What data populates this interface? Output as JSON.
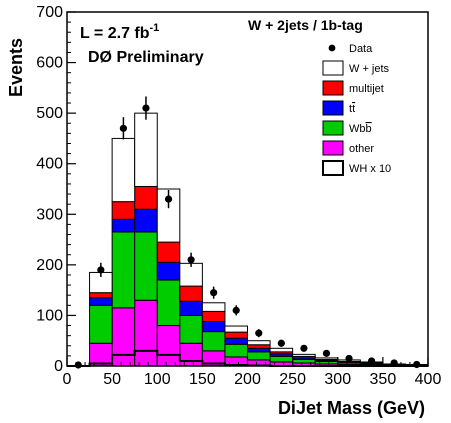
{
  "chart_data": {
    "type": "bar",
    "stacked": true,
    "xlabel": "DiJet Mass  (GeV)",
    "ylabel": "Events",
    "xlim": [
      0,
      400
    ],
    "ylim": [
      0,
      700
    ],
    "x_ticks": [
      "0",
      "50",
      "100",
      "150",
      "200",
      "250",
      "300",
      "350",
      "400"
    ],
    "y_ticks": [
      "0",
      "100",
      "200",
      "300",
      "400",
      "500",
      "600",
      "700"
    ],
    "luminosity_label": "L = 2.7 fb",
    "luminosity_sup": "-1",
    "experiment_label": "DØ Preliminary",
    "channel_label": "W + 2jets / 1b-tag",
    "bin_edges": [
      0,
      25,
      50,
      75,
      100,
      125,
      150,
      175,
      200,
      225,
      250,
      275,
      300,
      325,
      350,
      375,
      400
    ],
    "series": [
      {
        "name": "other",
        "color": "#ff00ff",
        "values": [
          0,
          45,
          115,
          130,
          80,
          45,
          30,
          18,
          12,
          8,
          6,
          4,
          3,
          2,
          1,
          1
        ]
      },
      {
        "name": "Wbb",
        "legend_main": "Wb",
        "legend_bar": "b",
        "color": "#00cc00",
        "values": [
          0,
          75,
          150,
          135,
          90,
          55,
          38,
          25,
          16,
          11,
          7,
          5,
          3,
          2,
          1,
          1
        ]
      },
      {
        "name": "tt",
        "legend_main": "t",
        "legend_bar": "t",
        "color": "#0000ff",
        "values": [
          0,
          15,
          25,
          45,
          35,
          28,
          20,
          12,
          7,
          5,
          3,
          2,
          1,
          1,
          0,
          0
        ]
      },
      {
        "name": "multijet",
        "color": "#ff0000",
        "values": [
          0,
          10,
          35,
          45,
          40,
          30,
          20,
          12,
          7,
          4,
          3,
          2,
          2,
          1,
          1,
          0
        ]
      },
      {
        "name": "W + jets",
        "color": "#ffffff",
        "values": [
          0,
          40,
          125,
          145,
          105,
          45,
          17,
          12,
          8,
          7,
          4,
          3,
          3,
          2,
          1,
          1
        ]
      }
    ],
    "signal": {
      "name": "WH x 10",
      "values": [
        0,
        5,
        22,
        30,
        22,
        10,
        5,
        2,
        1,
        0,
        0,
        0,
        0,
        0,
        0,
        0
      ]
    },
    "data": {
      "name": "Data",
      "x": [
        12.5,
        37.5,
        62.5,
        87.5,
        112.5,
        137.5,
        162.5,
        187.5,
        212.5,
        237.5,
        262.5,
        287.5,
        312.5,
        337.5,
        362.5,
        387.5
      ],
      "y": [
        2,
        190,
        470,
        510,
        330,
        210,
        145,
        110,
        65,
        45,
        35,
        25,
        15,
        10,
        6,
        3
      ],
      "err": [
        2,
        14,
        22,
        23,
        18,
        14,
        12,
        10,
        8,
        7,
        6,
        5,
        4,
        3,
        2,
        2
      ]
    }
  }
}
